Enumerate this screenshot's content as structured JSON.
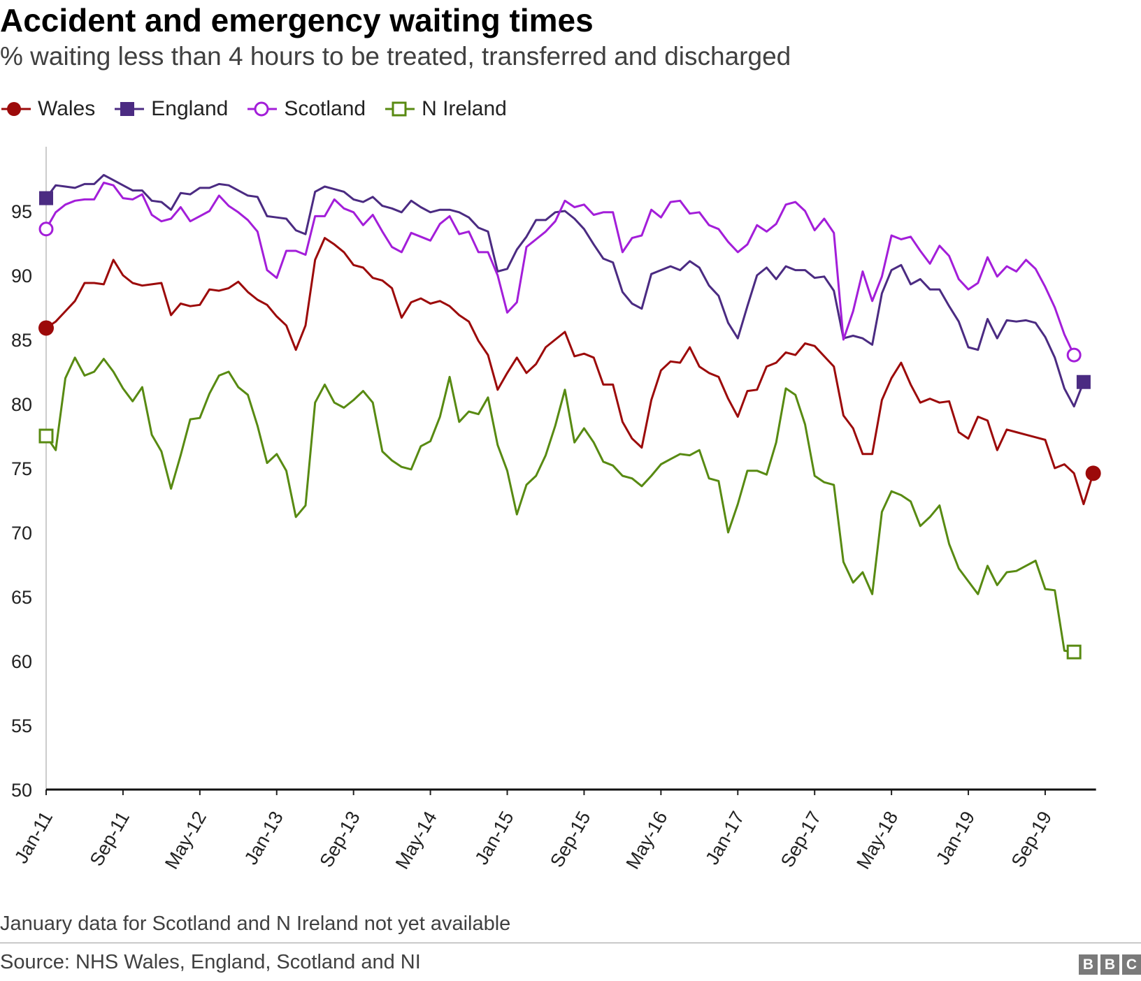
{
  "chart_data": {
    "type": "line",
    "title": "Accident and emergency waiting times",
    "subtitle": "% waiting less than 4 hours to be treated, transferred and discharged",
    "xlabel": "",
    "ylabel": "",
    "ylim": [
      50,
      100
    ],
    "yticks": [
      50,
      55,
      60,
      65,
      70,
      75,
      80,
      85,
      90,
      95
    ],
    "x_start": "Jan-11",
    "x_tick_labels": [
      "Jan-11",
      "Sep-11",
      "May-12",
      "Jan-13",
      "Sep-13",
      "May-14",
      "Jan-15",
      "Sep-15",
      "May-16",
      "Jan-17",
      "Sep-17",
      "May-18",
      "Jan-19",
      "Sep-19"
    ],
    "x_tick_every_months": 8,
    "legend_position": "top-left",
    "series": [
      {
        "name": "Wales",
        "color": "#9c0a0a",
        "marker": "filled-circle",
        "values": [
          85.9,
          86.4,
          87.2,
          88.0,
          89.4,
          89.4,
          89.3,
          91.2,
          90.0,
          89.4,
          89.2,
          89.3,
          89.4,
          86.9,
          87.8,
          87.6,
          87.7,
          88.9,
          88.8,
          89.0,
          89.5,
          88.7,
          88.1,
          87.7,
          86.8,
          86.1,
          84.2,
          86.1,
          91.2,
          92.9,
          92.4,
          91.8,
          90.8,
          90.6,
          89.8,
          89.6,
          89.0,
          86.7,
          87.9,
          88.2,
          87.8,
          88.0,
          87.6,
          86.9,
          86.4,
          84.9,
          83.8,
          81.1,
          82.4,
          83.6,
          82.4,
          83.1,
          84.4,
          85.0,
          85.6,
          83.7,
          83.9,
          83.6,
          81.5,
          81.5,
          78.6,
          77.3,
          76.6,
          80.3,
          82.6,
          83.3,
          83.2,
          84.4,
          82.9,
          82.4,
          82.1,
          80.4,
          79.0,
          81.0,
          81.1,
          82.9,
          83.2,
          84.0,
          83.8,
          84.7,
          84.5,
          83.7,
          82.9,
          79.1,
          78.1,
          76.1,
          76.1,
          80.3,
          82.0,
          83.2,
          81.5,
          80.1,
          80.4,
          80.1,
          80.2,
          77.8,
          77.3,
          79.0,
          78.7,
          76.4,
          78.0,
          77.8,
          77.6,
          77.4,
          77.2,
          75.0,
          75.3,
          74.6,
          72.2,
          74.6
        ]
      },
      {
        "name": "England",
        "color": "#4b2b82",
        "marker": "filled-square",
        "values": [
          96.0,
          97.0,
          96.9,
          96.8,
          97.1,
          97.1,
          97.8,
          97.4,
          97.0,
          96.6,
          96.6,
          95.8,
          95.7,
          95.1,
          96.4,
          96.3,
          96.8,
          96.8,
          97.1,
          97.0,
          96.6,
          96.2,
          96.1,
          94.6,
          94.5,
          94.4,
          93.5,
          93.2,
          96.5,
          96.9,
          96.7,
          96.5,
          95.9,
          95.7,
          96.1,
          95.4,
          95.2,
          94.9,
          95.8,
          95.3,
          94.9,
          95.1,
          95.1,
          94.9,
          94.5,
          93.7,
          93.4,
          90.3,
          90.5,
          92.0,
          93.0,
          94.3,
          94.3,
          94.9,
          95.0,
          94.4,
          93.6,
          92.4,
          91.3,
          91.0,
          88.7,
          87.8,
          87.4,
          90.1,
          90.4,
          90.7,
          90.4,
          91.1,
          90.6,
          89.2,
          88.4,
          86.3,
          85.1,
          87.6,
          90.0,
          90.6,
          89.7,
          90.7,
          90.4,
          90.4,
          89.8,
          89.9,
          88.8,
          85.1,
          85.3,
          85.1,
          84.6,
          88.6,
          90.4,
          90.8,
          89.3,
          89.7,
          88.9,
          88.9,
          87.6,
          86.4,
          84.4,
          84.2,
          86.6,
          85.1,
          86.5,
          86.4,
          86.5,
          86.3,
          85.2,
          83.6,
          81.2,
          79.8,
          81.7
        ]
      },
      {
        "name": "Scotland",
        "color": "#a31ed9",
        "marker": "open-circle",
        "values": [
          93.6,
          94.9,
          95.5,
          95.8,
          95.9,
          95.9,
          97.2,
          97.0,
          96.0,
          95.9,
          96.3,
          94.7,
          94.2,
          94.4,
          95.3,
          94.2,
          94.6,
          95.0,
          96.2,
          95.4,
          94.9,
          94.3,
          93.4,
          90.4,
          89.8,
          91.9,
          91.9,
          91.6,
          94.6,
          94.6,
          95.9,
          95.2,
          94.9,
          93.9,
          94.7,
          93.4,
          92.2,
          91.8,
          93.3,
          93.0,
          92.7,
          94.0,
          94.6,
          93.2,
          93.4,
          91.8,
          91.8,
          90.0,
          87.1,
          87.9,
          92.2,
          92.8,
          93.4,
          94.2,
          95.8,
          95.3,
          95.5,
          94.7,
          94.9,
          94.9,
          91.8,
          92.9,
          93.1,
          95.1,
          94.5,
          95.7,
          95.8,
          94.8,
          94.9,
          93.9,
          93.6,
          92.6,
          91.8,
          92.4,
          93.9,
          93.4,
          94.0,
          95.5,
          95.7,
          95.0,
          93.5,
          94.4,
          93.3,
          85.0,
          87.2,
          90.3,
          88.0,
          89.9,
          93.1,
          92.8,
          93.0,
          91.9,
          90.9,
          92.3,
          91.5,
          89.7,
          88.9,
          89.4,
          91.4,
          89.9,
          90.7,
          90.3,
          91.2,
          90.5,
          89.1,
          87.5,
          85.4,
          83.8
        ]
      },
      {
        "name": "N Ireland",
        "color": "#588a12",
        "marker": "open-square",
        "values": [
          77.5,
          76.4,
          82.0,
          83.6,
          82.2,
          82.5,
          83.5,
          82.5,
          81.2,
          80.2,
          81.3,
          77.6,
          76.3,
          73.4,
          76.0,
          78.8,
          78.9,
          80.8,
          82.2,
          82.5,
          81.3,
          80.7,
          78.3,
          75.4,
          76.1,
          74.8,
          71.2,
          72.1,
          80.1,
          81.5,
          80.1,
          79.7,
          80.3,
          81.0,
          80.1,
          76.3,
          75.6,
          75.1,
          74.9,
          76.7,
          77.1,
          79.0,
          82.1,
          78.6,
          79.4,
          79.2,
          80.5,
          76.8,
          74.8,
          71.4,
          73.7,
          74.4,
          76.0,
          78.3,
          81.1,
          77.0,
          78.1,
          77.0,
          75.5,
          75.2,
          74.4,
          74.2,
          73.6,
          74.4,
          75.3,
          75.7,
          76.1,
          76.0,
          76.4,
          74.2,
          74.0,
          70.0,
          72.2,
          74.8,
          74.8,
          74.5,
          77.0,
          81.2,
          80.7,
          78.4,
          74.4,
          73.9,
          73.7,
          67.7,
          66.1,
          66.9,
          65.2,
          71.6,
          73.2,
          72.9,
          72.4,
          70.5,
          71.2,
          72.1,
          69.1,
          67.2,
          66.2,
          65.2,
          67.4,
          65.9,
          66.9,
          67.0,
          67.4,
          67.8,
          65.6,
          65.5,
          60.8,
          60.7
        ]
      }
    ]
  },
  "footnote": "January data for Scotland and N Ireland not yet available",
  "source": "Source: NHS Wales, England, Scotland and NI",
  "logo": [
    "B",
    "B",
    "C"
  ]
}
